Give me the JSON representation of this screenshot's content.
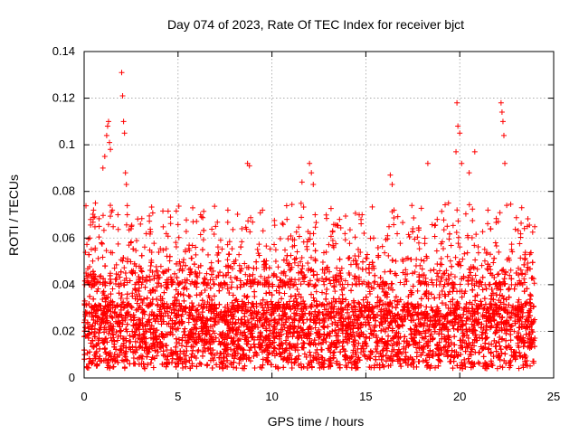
{
  "chart_data": {
    "type": "scatter",
    "title": "Day 074 of 2023, Rate Of TEC Index for receiver bjct",
    "xlabel": "GPS time / hours",
    "ylabel": "ROTI / TECUs",
    "xlim": [
      0,
      25
    ],
    "ylim": [
      0,
      0.14
    ],
    "x_ticks": [
      0,
      5,
      10,
      15,
      20,
      25
    ],
    "x_tick_labels": [
      "0",
      "5",
      "10",
      "15",
      "20",
      "25"
    ],
    "y_ticks": [
      0,
      0.02,
      0.04,
      0.06,
      0.08,
      0.1,
      0.12,
      0.14
    ],
    "y_tick_labels": [
      "0",
      "0.02",
      "0.04",
      "0.06",
      "0.08",
      "0.1",
      "0.12",
      "0.14"
    ],
    "grid": true,
    "marker": "+",
    "color": "#ff0000",
    "x_data_range": [
      0,
      24
    ],
    "series": [
      {
        "points": [
          [
            0.1,
            0.045
          ],
          [
            0.3,
            0.06
          ],
          [
            0.5,
            0.072
          ],
          [
            0.6,
            0.075
          ],
          [
            0.8,
            0.065
          ],
          [
            1.0,
            0.09
          ],
          [
            1.1,
            0.095
          ],
          [
            1.2,
            0.104
          ],
          [
            1.25,
            0.108
          ],
          [
            1.3,
            0.11
          ],
          [
            1.35,
            0.101
          ],
          [
            1.4,
            0.098
          ],
          [
            1.5,
            0.072
          ],
          [
            1.8,
            0.07
          ],
          [
            2.0,
            0.131
          ],
          [
            2.05,
            0.121
          ],
          [
            2.1,
            0.11
          ],
          [
            2.15,
            0.105
          ],
          [
            2.2,
            0.088
          ],
          [
            2.25,
            0.083
          ],
          [
            2.3,
            0.07
          ],
          [
            2.5,
            0.064
          ],
          [
            3.0,
            0.066
          ],
          [
            4.6,
            0.069
          ],
          [
            5.8,
            0.067
          ],
          [
            6.2,
            0.07
          ],
          [
            7.0,
            0.065
          ],
          [
            8.4,
            0.064
          ],
          [
            8.7,
            0.092
          ],
          [
            8.8,
            0.091
          ],
          [
            9.5,
            0.072
          ],
          [
            10.8,
            0.068
          ],
          [
            11.6,
            0.084
          ],
          [
            12.0,
            0.092
          ],
          [
            12.1,
            0.088
          ],
          [
            12.2,
            0.083
          ],
          [
            12.3,
            0.07
          ],
          [
            13.6,
            0.068
          ],
          [
            14.8,
            0.07
          ],
          [
            16.3,
            0.087
          ],
          [
            16.4,
            0.083
          ],
          [
            16.5,
            0.072
          ],
          [
            17.5,
            0.064
          ],
          [
            18.3,
            0.092
          ],
          [
            18.8,
            0.068
          ],
          [
            19.4,
            0.075
          ],
          [
            19.8,
            0.097
          ],
          [
            19.85,
            0.118
          ],
          [
            19.9,
            0.108
          ],
          [
            20.0,
            0.105
          ],
          [
            20.1,
            0.092
          ],
          [
            20.5,
            0.088
          ],
          [
            20.8,
            0.097
          ],
          [
            21.5,
            0.072
          ],
          [
            22.2,
            0.118
          ],
          [
            22.25,
            0.114
          ],
          [
            22.3,
            0.11
          ],
          [
            22.35,
            0.104
          ],
          [
            22.4,
            0.092
          ],
          [
            22.5,
            0.074
          ],
          [
            23.3,
            0.073
          ],
          [
            23.6,
            0.065
          ]
        ]
      }
    ]
  }
}
